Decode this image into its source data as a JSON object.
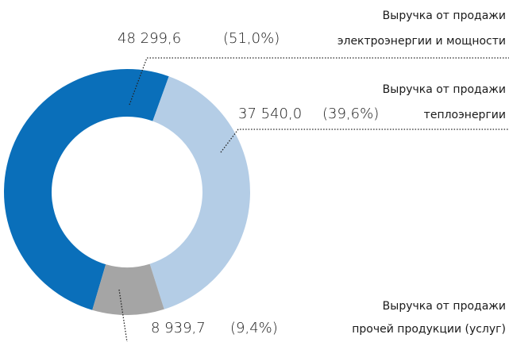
{
  "chart_data": {
    "type": "donut",
    "categories": [
      [
        "Выручка от продажи",
        "электроэнергии и мощности"
      ],
      [
        "Выручка от продажи",
        "теплоэнергии"
      ],
      [
        "Выручка от продажи",
        "прочей продукции (услуг)"
      ]
    ],
    "values": [
      48299.6,
      37540.0,
      8939.7
    ],
    "value_labels": [
      "48 299,6",
      "37 540,0",
      "8 939,7"
    ],
    "percents": [
      51.0,
      39.6,
      9.4
    ],
    "percent_labels": [
      "(51,0%)",
      "(39,6%)",
      "(9,4%)"
    ],
    "colors": [
      "#0a6fba",
      "#b4cde6",
      "#a5a5a5"
    ]
  }
}
